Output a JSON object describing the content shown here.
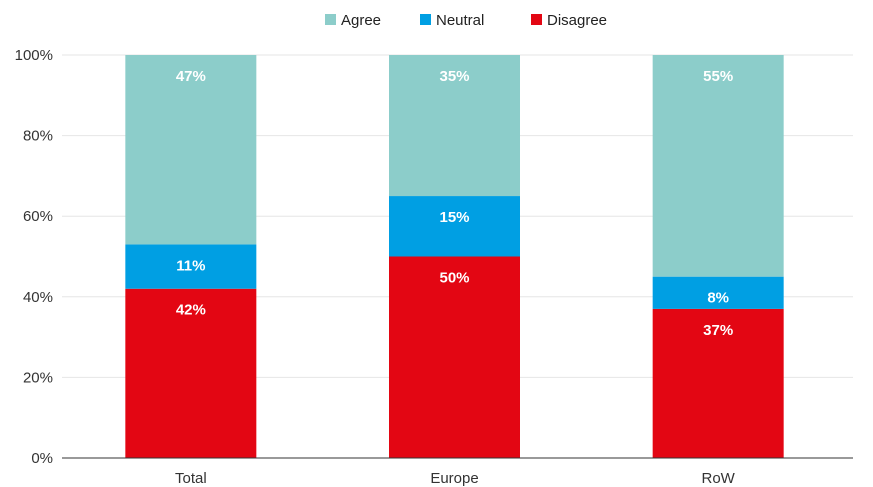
{
  "chart_data": {
    "type": "bar",
    "stacked": true,
    "categories": [
      "Total",
      "Europe",
      "RoW"
    ],
    "series": [
      {
        "name": "Disagree",
        "values": [
          42,
          50,
          37
        ],
        "color": "#e30613",
        "labels": [
          "42%",
          "50%",
          "37%"
        ]
      },
      {
        "name": "Neutral",
        "values": [
          11,
          15,
          8
        ],
        "color": "#009fe3",
        "labels": [
          "11%",
          "15%",
          "8%"
        ]
      },
      {
        "name": "Agree",
        "values": [
          47,
          35,
          55
        ],
        "color": "#8ccdca",
        "labels": [
          "47%",
          "35%",
          "55%"
        ]
      }
    ],
    "legend_order": [
      "Agree",
      "Neutral",
      "Disagree"
    ],
    "ylim": [
      0,
      100
    ],
    "yticks": [
      0,
      20,
      40,
      60,
      80,
      100
    ],
    "ytick_labels": [
      "0%",
      "20%",
      "40%",
      "60%",
      "80%",
      "100%"
    ],
    "grid": true,
    "legend_position": "top"
  }
}
